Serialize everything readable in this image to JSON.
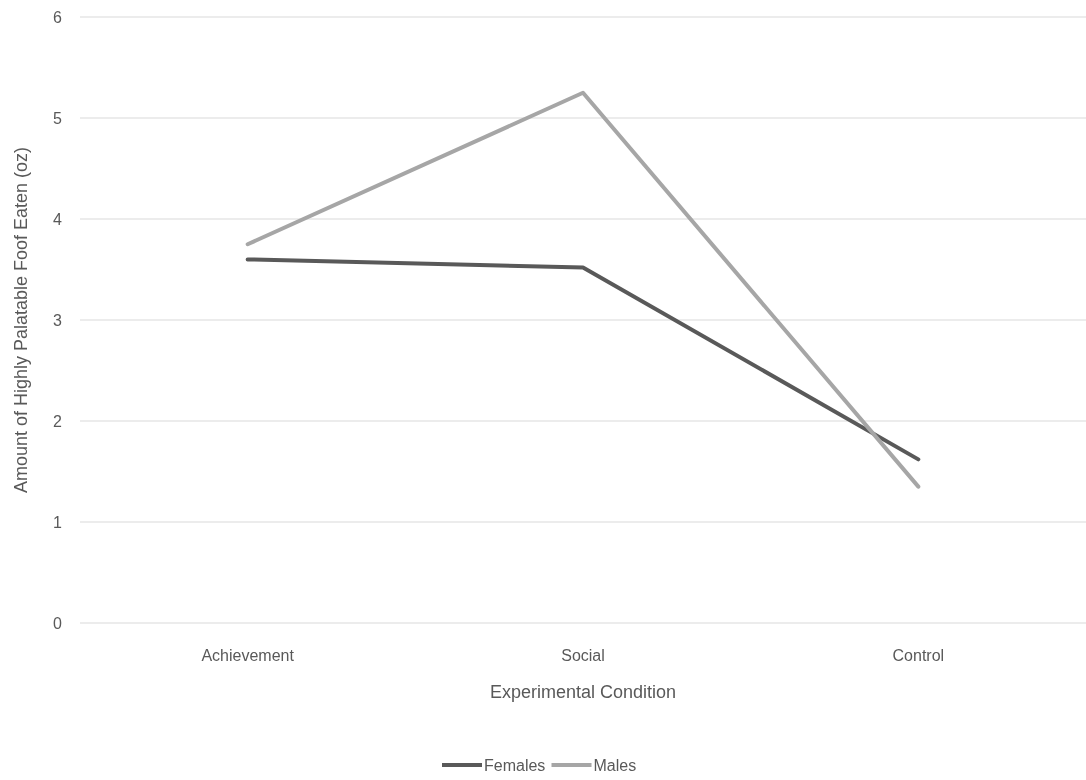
{
  "chart_data": {
    "type": "line",
    "xlabel": "Experimental Condition",
    "ylabel": "Amount of Highly Palatable Foof Eaten (oz)",
    "categories": [
      "Achievement",
      "Social",
      "Control"
    ],
    "series": [
      {
        "name": "Females",
        "color": "#595959",
        "values": [
          3.6,
          3.52,
          1.62
        ]
      },
      {
        "name": "Males",
        "color": "#a6a6a6",
        "values": [
          3.75,
          5.25,
          1.35
        ]
      }
    ],
    "ylim": [
      0,
      6
    ],
    "yticks": [
      0,
      1,
      2,
      3,
      4,
      5,
      6
    ],
    "grid": "y",
    "legend": "bottom",
    "marker": "none",
    "line_style": "solid"
  }
}
